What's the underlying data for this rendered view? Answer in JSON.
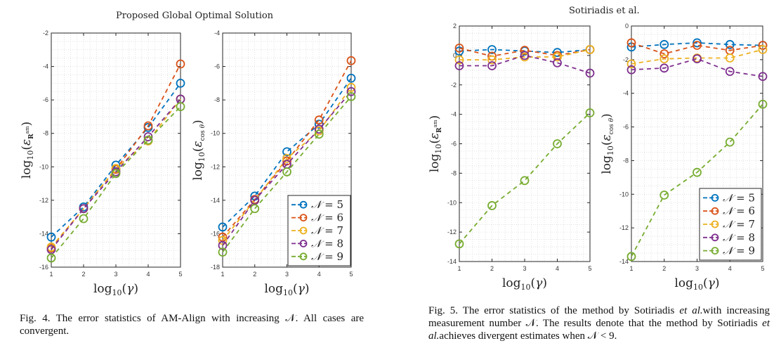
{
  "figure4": {
    "title": "Proposed Global Optimal Solution",
    "caption": "Fig. 4.  The error statistics of AM-Align with increasing 𝒩. All cases are convergent."
  },
  "figure5": {
    "title": "Sotiriadis et al.",
    "caption_parts": {
      "a": "Fig. 5.  The error statistics of the method by Sotiriadis ",
      "b": "et al.",
      "c": "with increasing measurement number 𝒩. The results denote that the method by Sotiriadis ",
      "d": "et al.",
      "e": "achieves divergent estimates when 𝒩 < 9."
    }
  },
  "series_colors": {
    "N=5": "#0072BD",
    "N=6": "#D95319",
    "N=7": "#EDB120",
    "N=8": "#7E2F8E",
    "N=9": "#77AC30"
  },
  "chart_data": [
    {
      "id": "fig4-left",
      "type": "line",
      "group": "Proposed Global Optimal Solution",
      "title": "",
      "xlabel": "log10(γ)",
      "ylabel": "log10(ε_R_m^a)",
      "x": [
        1,
        2,
        3,
        4,
        5
      ],
      "xlim": [
        1,
        5
      ],
      "ylim": [
        -16,
        -2
      ],
      "xticks": [
        1,
        2,
        3,
        4,
        5
      ],
      "yticks": [
        -16,
        -14,
        -12,
        -10,
        -8,
        -6,
        -4,
        -2
      ],
      "grid": true,
      "legend": null,
      "series": [
        {
          "name": "N = 5",
          "values": [
            -14.2,
            -12.4,
            -9.9,
            -7.65,
            -5.0
          ]
        },
        {
          "name": "N = 6",
          "values": [
            -14.85,
            -12.5,
            -10.15,
            -7.55,
            -3.85
          ]
        },
        {
          "name": "N = 7",
          "values": [
            -14.8,
            -12.5,
            -10.1,
            -8.45,
            -5.95
          ]
        },
        {
          "name": "N = 8",
          "values": [
            -14.95,
            -12.5,
            -10.3,
            -8.2,
            -5.95
          ]
        },
        {
          "name": "N = 9",
          "values": [
            -15.45,
            -13.1,
            -10.4,
            -8.4,
            -6.4
          ]
        }
      ]
    },
    {
      "id": "fig4-right",
      "type": "line",
      "group": "Proposed Global Optimal Solution",
      "title": "",
      "xlabel": "log10(γ)",
      "ylabel": "log10(ε_cos θ)",
      "x": [
        1,
        2,
        3,
        4,
        5
      ],
      "xlim": [
        1,
        5
      ],
      "ylim": [
        -18,
        -4
      ],
      "xticks": [
        1,
        2,
        3,
        4,
        5
      ],
      "yticks": [
        -18,
        -16,
        -14,
        -12,
        -10,
        -8,
        -6,
        -4
      ],
      "grid": true,
      "legend": "bottom-right",
      "series": [
        {
          "name": "N = 5",
          "values": [
            -15.6,
            -13.75,
            -11.1,
            -9.45,
            -6.7
          ]
        },
        {
          "name": "N = 6",
          "values": [
            -16.2,
            -13.95,
            -11.65,
            -9.2,
            -5.65
          ]
        },
        {
          "name": "N = 7",
          "values": [
            -16.4,
            -14.0,
            -11.5,
            -9.85,
            -7.25
          ]
        },
        {
          "name": "N = 8",
          "values": [
            -16.7,
            -14.0,
            -11.85,
            -9.75,
            -7.5
          ]
        },
        {
          "name": "N = 9",
          "values": [
            -17.1,
            -14.5,
            -12.3,
            -10.05,
            -7.8
          ]
        }
      ]
    },
    {
      "id": "fig5-left",
      "type": "line",
      "group": "Sotiriadis et al.",
      "title": "",
      "xlabel": "log10(γ)",
      "ylabel": "log10(ε_R_m^a)",
      "x": [
        1,
        2,
        3,
        4,
        5
      ],
      "xlim": [
        1,
        5
      ],
      "ylim": [
        -14,
        2
      ],
      "xticks": [
        1,
        2,
        3,
        4,
        5
      ],
      "yticks": [
        -14,
        -12,
        -10,
        -8,
        -6,
        -4,
        -2,
        0,
        2
      ],
      "grid": true,
      "legend": null,
      "series": [
        {
          "name": "N = 5",
          "values": [
            0.3,
            0.4,
            0.3,
            0.2,
            0.4
          ]
        },
        {
          "name": "N = 6",
          "values": [
            0.5,
            -0.05,
            0.35,
            0.0,
            0.4
          ]
        },
        {
          "name": "N = 7",
          "values": [
            -0.3,
            -0.3,
            -0.1,
            -0.1,
            0.4
          ]
        },
        {
          "name": "N = 8",
          "values": [
            -0.7,
            -0.7,
            0.0,
            -0.5,
            -1.2
          ]
        },
        {
          "name": "N = 9",
          "values": [
            -12.8,
            -10.2,
            -8.5,
            -6.0,
            -3.9
          ]
        }
      ]
    },
    {
      "id": "fig5-right",
      "type": "line",
      "group": "Sotiriadis et al.",
      "title": "",
      "xlabel": "log10(γ)",
      "ylabel": "log10(ε_cos θ)",
      "x": [
        1,
        2,
        3,
        4,
        5
      ],
      "xlim": [
        1,
        5
      ],
      "ylim": [
        -14,
        0
      ],
      "xticks": [
        1,
        2,
        3,
        4,
        5
      ],
      "yticks": [
        -14,
        -12,
        -10,
        -8,
        -6,
        -4,
        -2,
        0
      ],
      "grid": true,
      "legend": "bottom-right",
      "series": [
        {
          "name": "N = 5",
          "values": [
            -1.25,
            -1.1,
            -1.0,
            -1.1,
            -1.15
          ]
        },
        {
          "name": "N = 6",
          "values": [
            -1.0,
            -1.65,
            -1.15,
            -1.45,
            -1.15
          ]
        },
        {
          "name": "N = 7",
          "values": [
            -2.25,
            -1.95,
            -1.9,
            -1.9,
            -1.4
          ]
        },
        {
          "name": "N = 8",
          "values": [
            -2.6,
            -2.5,
            -1.95,
            -2.7,
            -3.0
          ]
        },
        {
          "name": "N = 9",
          "values": [
            -13.7,
            -10.05,
            -8.7,
            -6.9,
            -4.65
          ]
        }
      ]
    }
  ]
}
